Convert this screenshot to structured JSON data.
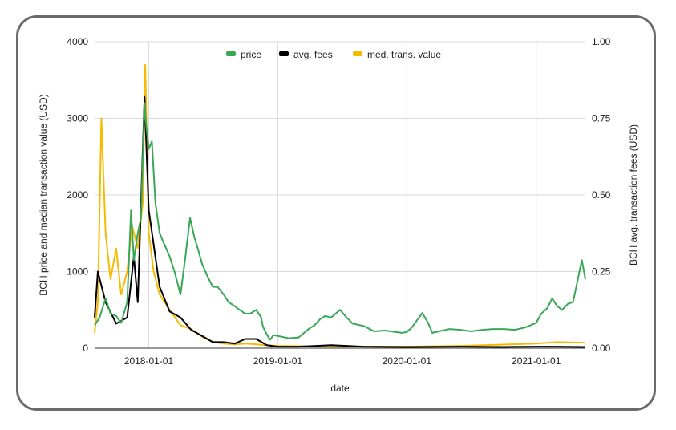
{
  "chart_data": {
    "type": "line",
    "xlabel": "date",
    "ylabel_left": "BCH price and median transaction value (USD)",
    "ylabel_right": "BCH avg. transaction fees (USD)",
    "x_range": [
      "2017-08-01",
      "2021-05-20"
    ],
    "left_ylim": [
      0,
      4000
    ],
    "right_ylim": [
      0,
      1.0
    ],
    "left_ticks": [
      "0",
      "1000",
      "2000",
      "3000",
      "4000"
    ],
    "right_ticks": [
      "0.00",
      "0.25",
      "0.50",
      "0.75",
      "1.00"
    ],
    "x_ticks": [
      "2018-01-01",
      "2019-01-01",
      "2020-01-01",
      "2021-01-01"
    ],
    "grid": true,
    "legend_position": "top-center",
    "colors": {
      "price": "#3aa757",
      "avg_fees": "#000000",
      "median_value": "#f6bb00"
    },
    "series": [
      {
        "name": "price",
        "axis": "left",
        "x": [
          "2017-08-01",
          "2017-08-15",
          "2017-09-01",
          "2017-09-15",
          "2017-10-01",
          "2017-10-15",
          "2017-11-01",
          "2017-11-12",
          "2017-11-20",
          "2017-12-01",
          "2017-12-10",
          "2017-12-20",
          "2017-12-25",
          "2018-01-01",
          "2018-01-10",
          "2018-01-20",
          "2018-02-01",
          "2018-02-10",
          "2018-03-01",
          "2018-03-15",
          "2018-04-01",
          "2018-04-15",
          "2018-04-28",
          "2018-05-10",
          "2018-05-20",
          "2018-06-01",
          "2018-06-15",
          "2018-07-01",
          "2018-07-15",
          "2018-08-01",
          "2018-08-15",
          "2018-09-01",
          "2018-09-15",
          "2018-10-01",
          "2018-10-15",
          "2018-11-01",
          "2018-11-15",
          "2018-11-20",
          "2018-12-01",
          "2018-12-10",
          "2018-12-20",
          "2019-01-01",
          "2019-02-01",
          "2019-03-01",
          "2019-04-01",
          "2019-04-15",
          "2019-05-01",
          "2019-05-15",
          "2019-06-01",
          "2019-06-26",
          "2019-07-15",
          "2019-08-01",
          "2019-09-01",
          "2019-10-01",
          "2019-11-01",
          "2019-12-01",
          "2019-12-18",
          "2020-01-01",
          "2020-01-15",
          "2020-02-14",
          "2020-03-01",
          "2020-03-13",
          "2020-04-01",
          "2020-05-01",
          "2020-06-01",
          "2020-07-01",
          "2020-08-01",
          "2020-09-01",
          "2020-10-01",
          "2020-11-01",
          "2020-12-01",
          "2021-01-01",
          "2021-01-15",
          "2021-02-01",
          "2021-02-15",
          "2021-03-01",
          "2021-03-15",
          "2021-04-01",
          "2021-04-15",
          "2021-05-01",
          "2021-05-10",
          "2021-05-20"
        ],
        "values": [
          300,
          400,
          650,
          450,
          420,
          330,
          600,
          1800,
          1150,
          1500,
          1700,
          3200,
          2900,
          2600,
          2700,
          1900,
          1500,
          1400,
          1200,
          1000,
          700,
          1200,
          1700,
          1450,
          1300,
          1100,
          950,
          800,
          800,
          700,
          600,
          550,
          500,
          450,
          450,
          500,
          400,
          280,
          180,
          110,
          170,
          160,
          130,
          140,
          260,
          300,
          380,
          420,
          400,
          500,
          400,
          320,
          290,
          220,
          230,
          210,
          200,
          210,
          270,
          460,
          330,
          200,
          220,
          250,
          240,
          220,
          240,
          250,
          250,
          240,
          270,
          330,
          450,
          520,
          650,
          550,
          500,
          580,
          600,
          950,
          1150,
          900
        ]
      },
      {
        "name": "avg. fees",
        "axis": "right",
        "x": [
          "2017-08-01",
          "2017-08-10",
          "2017-09-01",
          "2017-10-01",
          "2017-11-01",
          "2017-11-20",
          "2017-12-01",
          "2017-12-20",
          "2018-01-01",
          "2018-02-01",
          "2018-03-01",
          "2018-04-01",
          "2018-05-01",
          "2018-06-01",
          "2018-07-01",
          "2018-08-01",
          "2018-09-01",
          "2018-10-01",
          "2018-11-01",
          "2018-12-01",
          "2019-01-01",
          "2019-03-01",
          "2019-06-01",
          "2019-09-01",
          "2020-01-01",
          "2020-06-01",
          "2020-10-01",
          "2021-01-01",
          "2021-03-01",
          "2021-05-20"
        ],
        "values": [
          0.1,
          0.25,
          0.15,
          0.08,
          0.1,
          0.3,
          0.15,
          0.82,
          0.45,
          0.2,
          0.12,
          0.1,
          0.06,
          0.04,
          0.02,
          0.02,
          0.015,
          0.03,
          0.03,
          0.01,
          0.005,
          0.005,
          0.01,
          0.005,
          0.004,
          0.005,
          0.004,
          0.005,
          0.005,
          0.004
        ]
      },
      {
        "name": "med. trans. value",
        "axis": "left",
        "x": [
          "2017-08-01",
          "2017-08-10",
          "2017-08-20",
          "2017-09-01",
          "2017-09-15",
          "2017-10-01",
          "2017-10-15",
          "2017-11-01",
          "2017-11-15",
          "2017-12-01",
          "2017-12-15",
          "2017-12-22",
          "2018-01-01",
          "2018-01-15",
          "2018-02-01",
          "2018-03-01",
          "2018-04-01",
          "2018-05-01",
          "2018-06-01",
          "2018-07-01",
          "2018-08-01",
          "2018-09-01",
          "2018-10-01",
          "2018-11-01",
          "2018-12-01",
          "2019-01-01",
          "2019-06-01",
          "2020-01-01",
          "2020-06-01",
          "2021-01-01",
          "2021-03-01",
          "2021-05-20"
        ],
        "values": [
          200,
          600,
          3000,
          1500,
          900,
          1300,
          700,
          1000,
          1600,
          1300,
          1900,
          3700,
          1500,
          1000,
          700,
          500,
          300,
          250,
          150,
          80,
          60,
          50,
          60,
          50,
          40,
          30,
          20,
          20,
          30,
          60,
          80,
          70
        ]
      }
    ]
  }
}
